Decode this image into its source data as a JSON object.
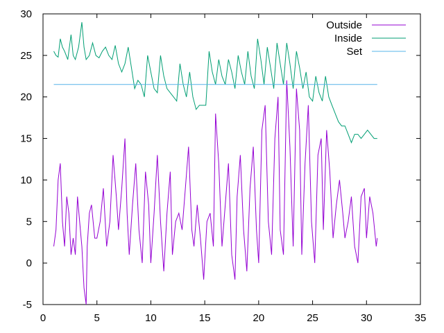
{
  "chart_data": {
    "type": "line",
    "title": "",
    "xlabel": "",
    "ylabel": "",
    "xlim": [
      0,
      35
    ],
    "ylim": [
      -5,
      30
    ],
    "xticks": [
      0,
      5,
      10,
      15,
      20,
      25,
      30,
      35
    ],
    "yticks": [
      -5,
      0,
      5,
      10,
      15,
      20,
      25,
      30
    ],
    "xtick_labels": [
      "0",
      "5",
      "10",
      "15",
      "20",
      "25",
      "30",
      "35"
    ],
    "ytick_labels": [
      "-5",
      "0",
      "5",
      "10",
      "15",
      "20",
      "25",
      "30"
    ],
    "grid": false,
    "legend_position": "top-right",
    "series": [
      {
        "name": "Outside",
        "color": "#9400d3",
        "x": [
          1,
          1.2,
          1.4,
          1.6,
          1.8,
          2.0,
          2.2,
          2.4,
          2.6,
          2.8,
          3.0,
          3.2,
          3.4,
          3.6,
          3.8,
          4.0,
          4.1,
          4.3,
          4.5,
          4.8,
          5.0,
          5.3,
          5.6,
          5.9,
          6.2,
          6.5,
          6.8,
          7.0,
          7.3,
          7.6,
          7.8,
          8.0,
          8.3,
          8.6,
          8.9,
          9.2,
          9.5,
          9.8,
          10.0,
          10.3,
          10.6,
          10.9,
          11.2,
          11.5,
          11.8,
          12.0,
          12.3,
          12.6,
          12.9,
          13.2,
          13.5,
          13.8,
          14.0,
          14.3,
          14.6,
          14.9,
          15.2,
          15.5,
          15.8,
          16.0,
          16.3,
          16.6,
          16.9,
          17.2,
          17.5,
          17.8,
          18.0,
          18.3,
          18.6,
          18.9,
          19.2,
          19.5,
          19.8,
          20.0,
          20.3,
          20.6,
          20.9,
          21.2,
          21.5,
          21.8,
          22.0,
          22.3,
          22.6,
          22.9,
          23.2,
          23.5,
          23.8,
          24.0,
          24.3,
          24.6,
          24.9,
          25.2,
          25.5,
          25.8,
          26.0,
          26.3,
          26.6,
          26.9,
          27.2,
          27.5,
          27.8,
          28.0,
          28.3,
          28.6,
          28.9,
          29.2,
          29.5,
          29.8,
          30.0,
          30.3,
          30.6,
          30.9,
          31.0
        ],
        "values": [
          2,
          4,
          10,
          12,
          5,
          2,
          8,
          6,
          1,
          3,
          1,
          8,
          5,
          2,
          -3,
          -5,
          2,
          6,
          7,
          3,
          3,
          5,
          9,
          2,
          5,
          13,
          8,
          4,
          9,
          15,
          6,
          1,
          7,
          12,
          4,
          0,
          11,
          7,
          0,
          6,
          13,
          5,
          -1,
          6,
          11,
          1,
          5,
          6,
          4,
          9,
          14,
          4,
          2,
          7,
          3,
          -2,
          5,
          6,
          2,
          18,
          12,
          2,
          7,
          12,
          1,
          -2,
          8,
          13,
          4,
          -1,
          9,
          14,
          4,
          0,
          16,
          19,
          5,
          1,
          15,
          20,
          4,
          1,
          22,
          14,
          2,
          21,
          16,
          1,
          12,
          19,
          5,
          0,
          13,
          15,
          4,
          16,
          11,
          3,
          7,
          10,
          6,
          3,
          5,
          8,
          2,
          0,
          8,
          9,
          3,
          8,
          6,
          2,
          3
        ]
      },
      {
        "name": "Inside",
        "color": "#009e73",
        "x": [
          1,
          1.2,
          1.4,
          1.6,
          1.8,
          2.0,
          2.3,
          2.6,
          2.8,
          3.0,
          3.3,
          3.6,
          3.8,
          4.0,
          4.3,
          4.6,
          4.9,
          5.2,
          5.5,
          5.8,
          6.1,
          6.4,
          6.7,
          7.0,
          7.3,
          7.6,
          7.9,
          8.2,
          8.5,
          8.8,
          9.1,
          9.4,
          9.7,
          10.0,
          10.3,
          10.6,
          10.9,
          11.2,
          11.5,
          11.8,
          12.1,
          12.4,
          12.7,
          13.0,
          13.3,
          13.6,
          13.9,
          14.2,
          14.5,
          14.8,
          15.1,
          15.4,
          15.7,
          16.0,
          16.3,
          16.6,
          16.9,
          17.2,
          17.5,
          17.8,
          18.1,
          18.4,
          18.7,
          19.0,
          19.3,
          19.6,
          19.9,
          20.2,
          20.5,
          20.8,
          21.1,
          21.4,
          21.7,
          22.0,
          22.3,
          22.6,
          22.9,
          23.2,
          23.5,
          23.8,
          24.1,
          24.4,
          24.7,
          25.0,
          25.3,
          25.6,
          25.9,
          26.2,
          26.5,
          26.8,
          27.1,
          27.4,
          27.7,
          28.0,
          28.3,
          28.6,
          28.9,
          29.2,
          29.5,
          29.8,
          30.1,
          30.4,
          30.7,
          31.0
        ],
        "values": [
          25.5,
          25,
          24.8,
          27,
          26,
          25.5,
          24.5,
          27.5,
          25,
          24.5,
          26,
          29,
          26,
          24.5,
          25,
          26.5,
          25,
          24.7,
          25.5,
          26,
          25,
          24.5,
          26.2,
          24,
          23,
          24,
          26,
          23.5,
          21,
          22,
          21.5,
          20,
          25,
          23,
          21,
          20.5,
          25,
          22.5,
          21,
          20.5,
          20,
          19.5,
          24,
          21.5,
          20,
          23,
          20,
          18.5,
          19,
          19,
          19,
          25.5,
          23,
          21.5,
          24.5,
          22.5,
          21.5,
          24.5,
          23,
          21,
          25,
          23,
          21.5,
          25.5,
          22.5,
          21,
          27,
          24.5,
          21.5,
          26,
          23.5,
          21,
          26.5,
          24,
          21.5,
          26.5,
          24,
          21,
          25.5,
          23.5,
          21,
          23,
          20,
          19.5,
          22.5,
          20.5,
          19.5,
          22.5,
          20,
          19,
          18,
          17,
          16.5,
          16.5,
          15.5,
          14.5,
          15.5,
          15.5,
          15,
          15.5,
          16,
          15.5,
          15,
          15
        ]
      },
      {
        "name": "Set",
        "color": "#56b4e9",
        "x": [
          1,
          31
        ],
        "values": [
          21.5,
          21.5
        ]
      }
    ]
  }
}
